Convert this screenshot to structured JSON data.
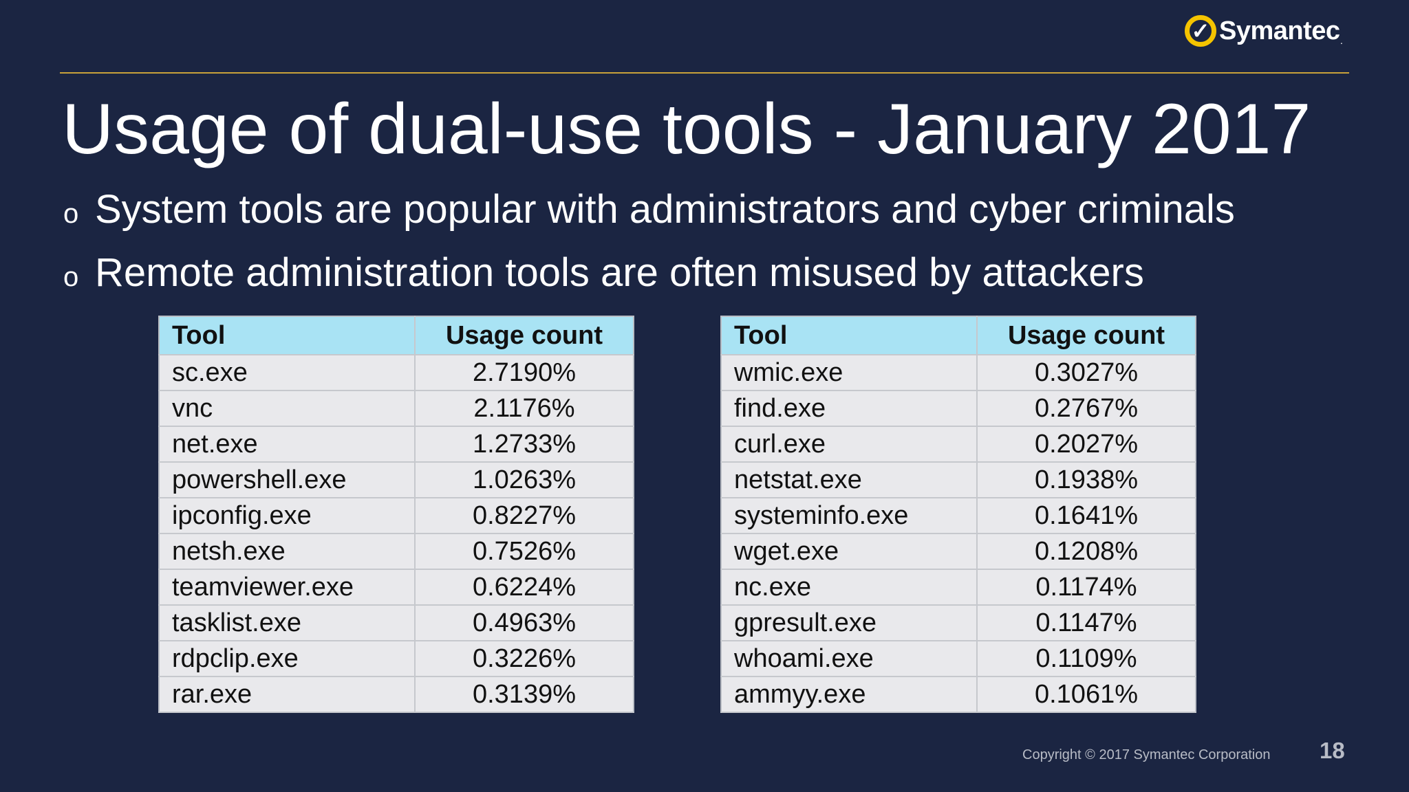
{
  "brand": {
    "name": "Symantec",
    "tm": ".",
    "colors": {
      "ring": "#f5c400",
      "background": "#1b2542",
      "divider": "#c9a23a",
      "header": "#a9e3f4"
    }
  },
  "title": "Usage of dual-use tools - January 2017",
  "bullets": [
    {
      "marker": "o",
      "text": "System tools are popular with administrators and cyber criminals"
    },
    {
      "marker": "o",
      "text": "Remote administration tools are often misused by attackers"
    }
  ],
  "tables": [
    {
      "headers": [
        "Tool",
        "Usage count"
      ],
      "rows": [
        [
          "sc.exe",
          "2.7190%"
        ],
        [
          "vnc",
          "2.1176%"
        ],
        [
          "net.exe",
          "1.2733%"
        ],
        [
          "powershell.exe",
          "1.0263%"
        ],
        [
          "ipconfig.exe",
          "0.8227%"
        ],
        [
          "netsh.exe",
          "0.7526%"
        ],
        [
          "teamviewer.exe",
          "0.6224%"
        ],
        [
          "tasklist.exe",
          "0.4963%"
        ],
        [
          "rdpclip.exe",
          "0.3226%"
        ],
        [
          "rar.exe",
          "0.3139%"
        ]
      ]
    },
    {
      "headers": [
        "Tool",
        "Usage count"
      ],
      "rows": [
        [
          "wmic.exe",
          "0.3027%"
        ],
        [
          "find.exe",
          "0.2767%"
        ],
        [
          "curl.exe",
          "0.2027%"
        ],
        [
          "netstat.exe",
          "0.1938%"
        ],
        [
          "systeminfo.exe",
          "0.1641%"
        ],
        [
          "wget.exe",
          "0.1208%"
        ],
        [
          "nc.exe",
          "0.1174%"
        ],
        [
          "gpresult.exe",
          "0.1147%"
        ],
        [
          "whoami.exe",
          "0.1109%"
        ],
        [
          "ammyy.exe",
          "0.1061%"
        ]
      ]
    }
  ],
  "footer": {
    "copyright": "Copyright © 2017 Symantec Corporation",
    "page": "18"
  }
}
